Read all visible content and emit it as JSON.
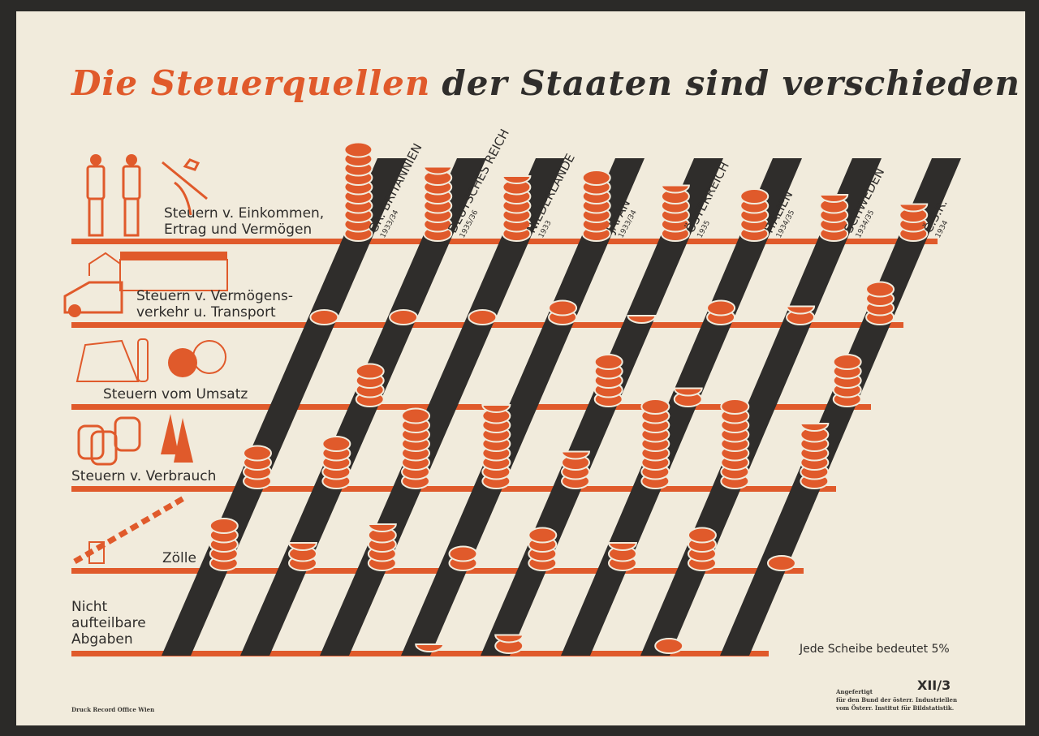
{
  "title": {
    "part1": "Die Steuerquellen",
    "part2": "der Staaten sind verschieden"
  },
  "legend": "Jede Scheibe bedeutet 5%",
  "plate_code": "XII/3",
  "credit": "Angefertigt\nfür den Bund der österr. Industriellen\nvom Österr. Institut für Bildstatistik.",
  "printer": "Druck Record Office Wien",
  "colors": {
    "coin": "#e05a2b",
    "bar": "#2f2d2b",
    "line": "#e05a2b",
    "paper": "#f1ebdc"
  },
  "chart_data": {
    "type": "pictogram",
    "title": "Die Steuerquellen der Staaten sind verschieden",
    "unit_note": "Jede Scheibe bedeutet 5%",
    "categories": [
      {
        "label": "Steuern v. Einkommen,\nErtrag und Vermögen",
        "icon": "workers-icon"
      },
      {
        "label": "Steuern v. Vermögens-\nverkehr u. Transport",
        "icon": "building-truck-icon"
      },
      {
        "label": "Steuern vom Umsatz",
        "icon": "goods-icon"
      },
      {
        "label": "Steuern v. Verbrauch",
        "icon": "barrels-icon"
      },
      {
        "label": "Zölle",
        "icon": "toll-barrier-icon"
      },
      {
        "label": "Nicht\naufteilbare\nAbgaben",
        "icon": ""
      }
    ],
    "series": [
      {
        "name": "GR. BRITANNIEN",
        "year": "1933/34",
        "values": [
          50,
          5,
          0,
          20,
          25,
          0
        ]
      },
      {
        "name": "DEUTSCHES REICH",
        "year": "1935/36",
        "values": [
          37.5,
          5,
          20,
          25,
          12.5,
          0
        ]
      },
      {
        "name": "NIEDERLANDE",
        "year": "1933",
        "values": [
          32.5,
          5,
          0,
          40,
          22.5,
          0
        ]
      },
      {
        "name": "JAPAN",
        "year": "1933/34",
        "values": [
          35,
          10,
          0,
          42.5,
          10,
          2.5
        ]
      },
      {
        "name": "ÖSTERREICH",
        "year": "1935",
        "values": [
          27.5,
          2.5,
          25,
          17.5,
          20,
          7.5
        ]
      },
      {
        "name": "ITALIEN",
        "year": "1934/35",
        "values": [
          25,
          10,
          7.5,
          45,
          12.5,
          0
        ]
      },
      {
        "name": "SCHWEDEN",
        "year": "1934/35",
        "values": [
          22.5,
          7.5,
          0,
          45,
          20,
          5
        ]
      },
      {
        "name": "Č.S.R.",
        "year": "1934",
        "values": [
          17.5,
          20,
          25,
          32.5,
          5,
          0
        ]
      }
    ],
    "unit_value": 5
  }
}
